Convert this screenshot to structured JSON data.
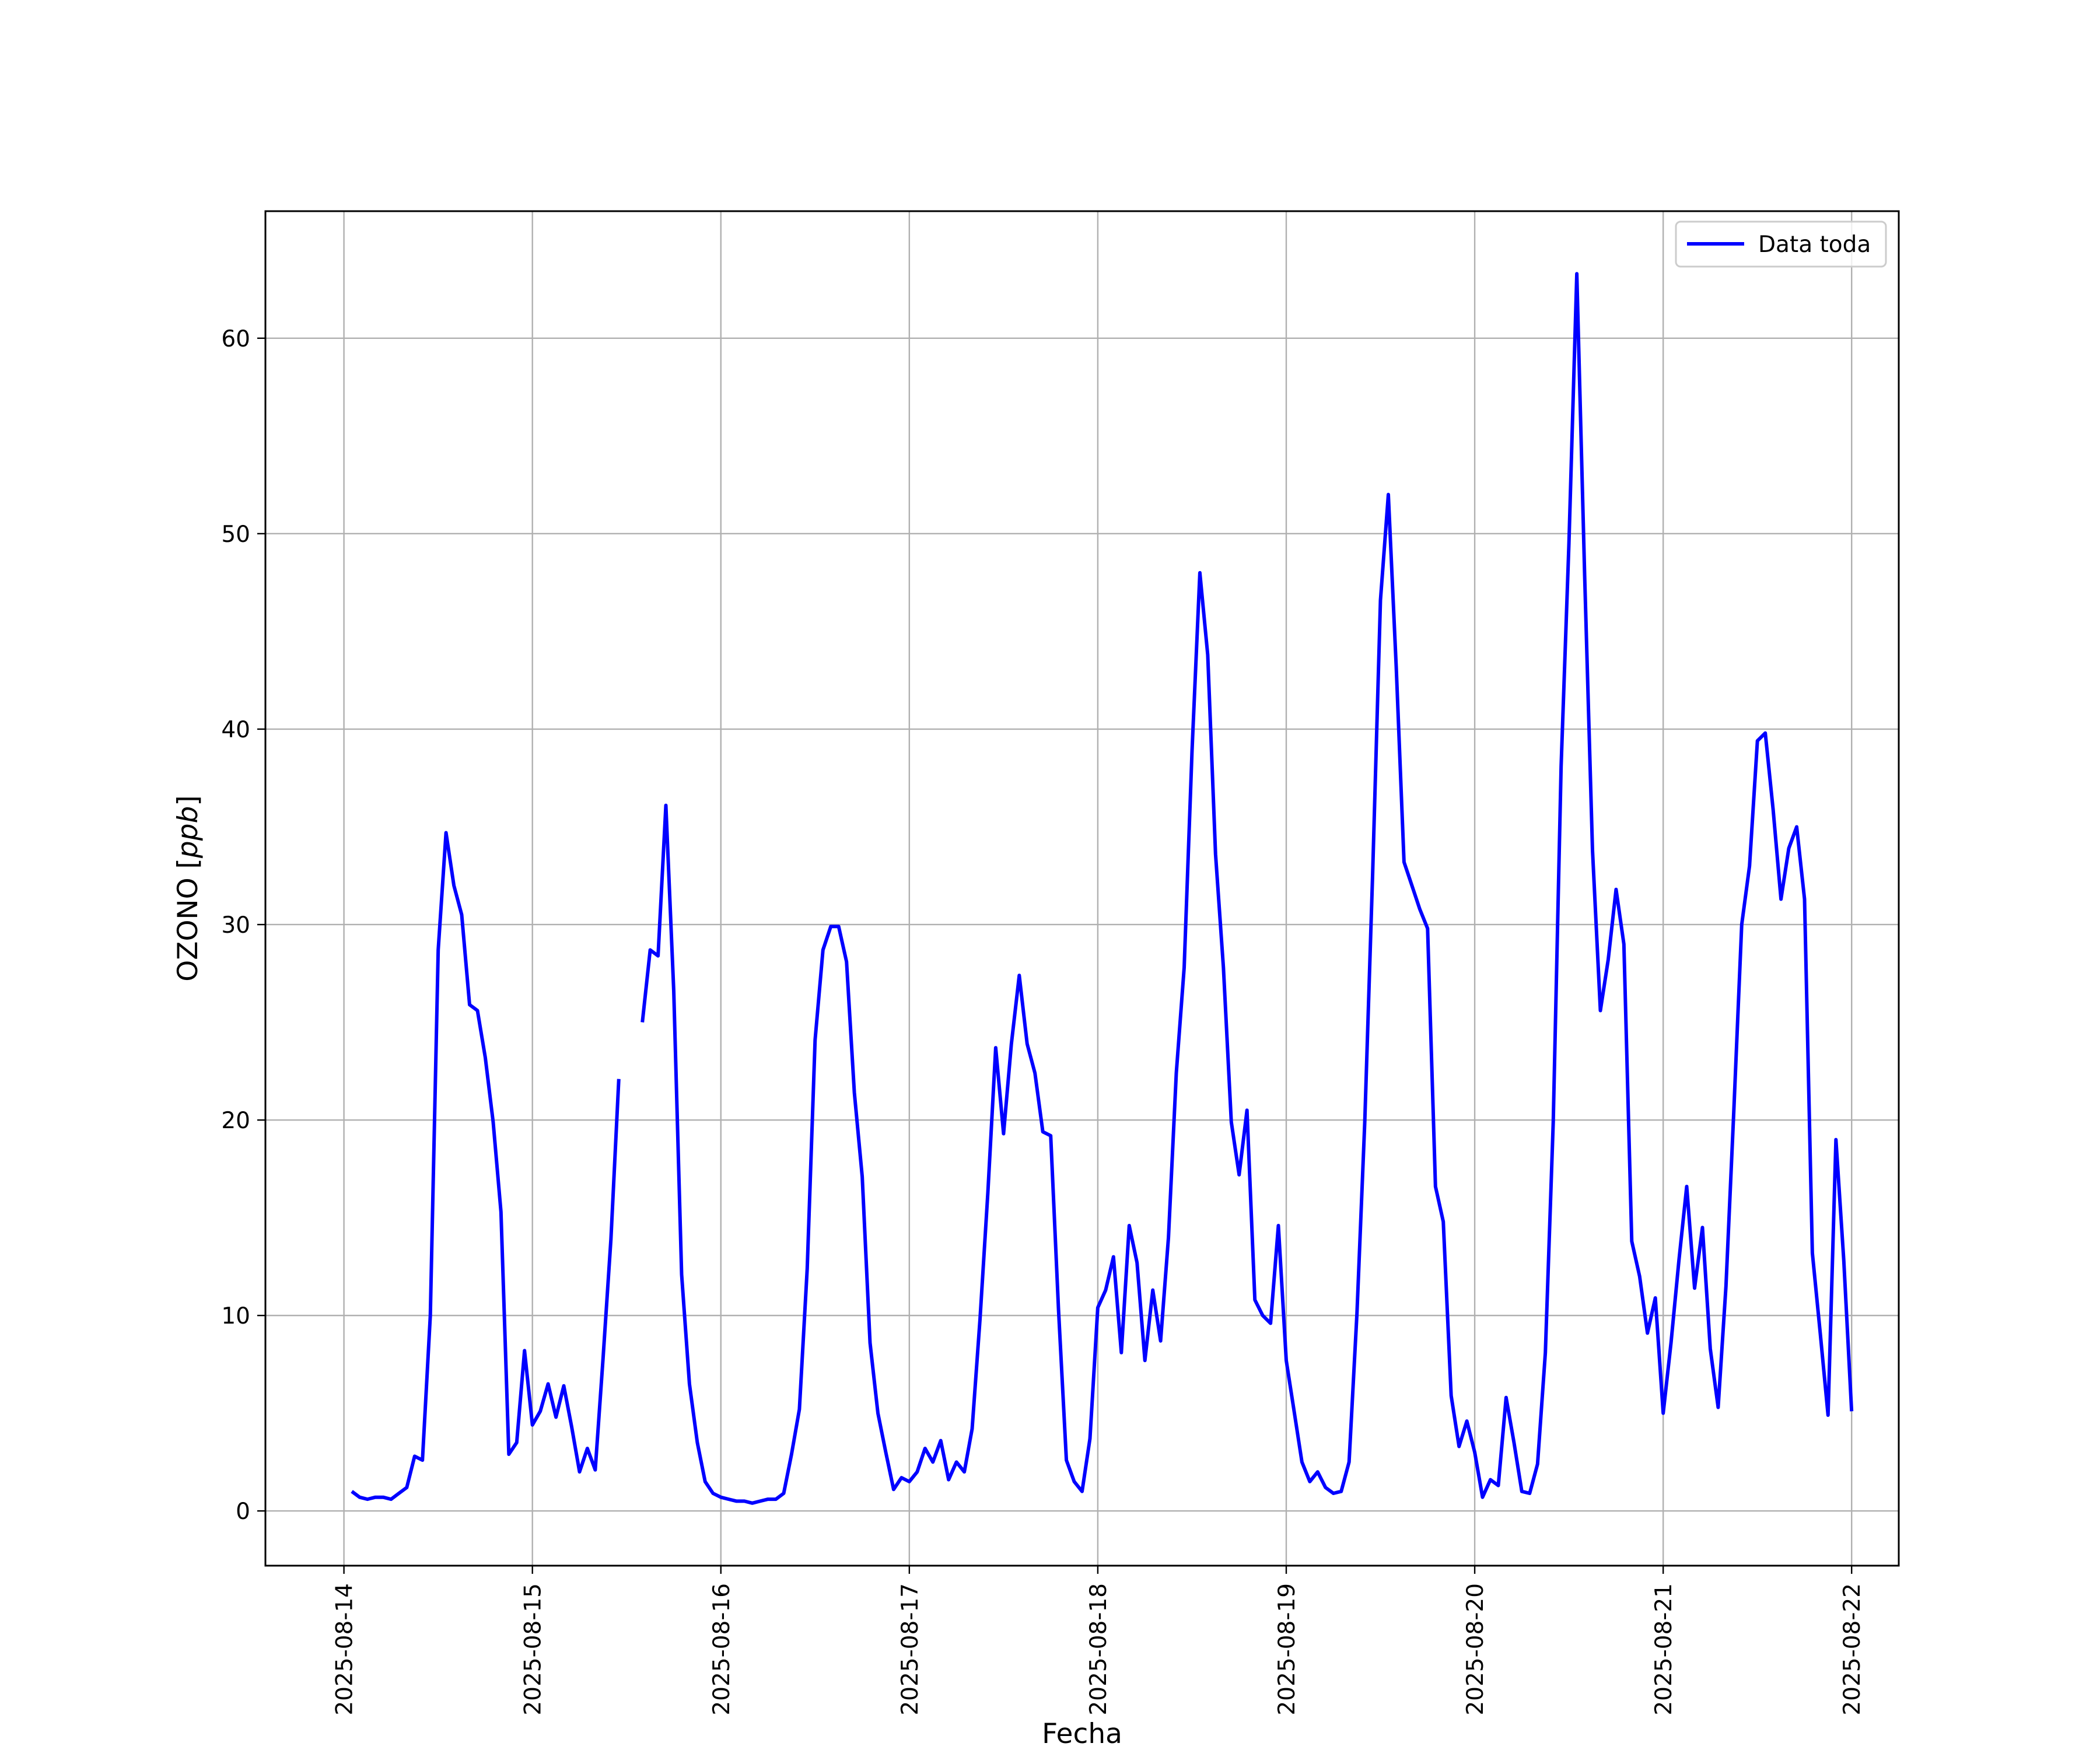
{
  "chart_data": {
    "type": "line",
    "title": "",
    "xlabel": "Fecha",
    "ylabel": "OZONO [ppb]",
    "ylabel_text": "OZONO [",
    "ylabel_unit": "ppb",
    "ylabel_close": "]",
    "xlim": [
      "2025-08-13T14:00",
      "2025-08-22T06:00"
    ],
    "ylim": [
      -2.8,
      66.5
    ],
    "grid": true,
    "legend_position": "top-right",
    "x_ticks": [
      "2025-08-14",
      "2025-08-15",
      "2025-08-16",
      "2025-08-17",
      "2025-08-18",
      "2025-08-19",
      "2025-08-20",
      "2025-08-21",
      "2025-08-22"
    ],
    "y_ticks": [
      0,
      10,
      20,
      30,
      40,
      50,
      60
    ],
    "y_tick_labels": [
      "0",
      "10",
      "20",
      "30",
      "40",
      "50",
      "60"
    ],
    "series": [
      {
        "name": "Data toda",
        "color": "#0000ff",
        "data": [
          [
            "2025-08-14T01:00",
            1.0
          ],
          [
            "2025-08-14T02:00",
            0.7
          ],
          [
            "2025-08-14T03:00",
            0.6
          ],
          [
            "2025-08-14T04:00",
            0.7
          ],
          [
            "2025-08-14T05:00",
            0.7
          ],
          [
            "2025-08-14T06:00",
            0.6
          ],
          [
            "2025-08-14T07:00",
            0.9
          ],
          [
            "2025-08-14T08:00",
            1.2
          ],
          [
            "2025-08-14T09:00",
            2.8
          ],
          [
            "2025-08-14T10:00",
            2.6
          ],
          [
            "2025-08-14T11:00",
            10.0
          ],
          [
            "2025-08-14T12:00",
            28.7
          ],
          [
            "2025-08-14T13:00",
            34.7
          ],
          [
            "2025-08-14T14:00",
            32.0
          ],
          [
            "2025-08-14T15:00",
            30.5
          ],
          [
            "2025-08-14T16:00",
            25.9
          ],
          [
            "2025-08-14T17:00",
            25.6
          ],
          [
            "2025-08-14T18:00",
            23.2
          ],
          [
            "2025-08-14T19:00",
            19.9
          ],
          [
            "2025-08-14T20:00",
            15.3
          ],
          [
            "2025-08-14T21:00",
            2.9
          ],
          [
            "2025-08-14T22:00",
            3.5
          ],
          [
            "2025-08-14T23:00",
            8.2
          ],
          [
            "2025-08-15T00:00",
            4.4
          ],
          [
            "2025-08-15T01:00",
            5.1
          ],
          [
            "2025-08-15T02:00",
            6.5
          ],
          [
            "2025-08-15T03:00",
            4.8
          ],
          [
            "2025-08-15T04:00",
            6.4
          ],
          [
            "2025-08-15T05:00",
            4.3
          ],
          [
            "2025-08-15T06:00",
            2.0
          ],
          [
            "2025-08-15T07:00",
            3.2
          ],
          [
            "2025-08-15T08:00",
            2.1
          ],
          [
            "2025-08-15T09:00",
            7.8
          ],
          [
            "2025-08-15T10:00",
            13.9
          ],
          [
            "2025-08-15T11:00",
            22.1
          ],
          [
            "2025-08-15T12:00",
            null
          ],
          [
            "2025-08-15T13:00",
            null
          ],
          [
            "2025-08-15T14:00",
            25.0
          ],
          [
            "2025-08-15T15:00",
            28.7
          ],
          [
            "2025-08-15T16:00",
            28.4
          ],
          [
            "2025-08-15T17:00",
            36.1
          ],
          [
            "2025-08-15T18:00",
            26.6
          ],
          [
            "2025-08-15T19:00",
            12.1
          ],
          [
            "2025-08-15T20:00",
            6.5
          ],
          [
            "2025-08-15T21:00",
            3.5
          ],
          [
            "2025-08-15T22:00",
            1.5
          ],
          [
            "2025-08-15T23:00",
            0.9
          ],
          [
            "2025-08-16T00:00",
            0.7
          ],
          [
            "2025-08-16T01:00",
            0.6
          ],
          [
            "2025-08-16T02:00",
            0.5
          ],
          [
            "2025-08-16T03:00",
            0.5
          ],
          [
            "2025-08-16T04:00",
            0.4
          ],
          [
            "2025-08-16T05:00",
            0.5
          ],
          [
            "2025-08-16T06:00",
            0.6
          ],
          [
            "2025-08-16T07:00",
            0.6
          ],
          [
            "2025-08-16T08:00",
            0.9
          ],
          [
            "2025-08-16T09:00",
            2.9
          ],
          [
            "2025-08-16T10:00",
            5.2
          ],
          [
            "2025-08-16T11:00",
            12.4
          ],
          [
            "2025-08-16T12:00",
            24.1
          ],
          [
            "2025-08-16T13:00",
            28.7
          ],
          [
            "2025-08-16T14:00",
            29.9
          ],
          [
            "2025-08-16T15:00",
            29.9
          ],
          [
            "2025-08-16T16:00",
            28.1
          ],
          [
            "2025-08-16T17:00",
            21.4
          ],
          [
            "2025-08-16T18:00",
            17.1
          ],
          [
            "2025-08-16T19:00",
            8.6
          ],
          [
            "2025-08-16T20:00",
            5.0
          ],
          [
            "2025-08-16T21:00",
            3.0
          ],
          [
            "2025-08-16T22:00",
            1.1
          ],
          [
            "2025-08-16T23:00",
            1.7
          ],
          [
            "2025-08-17T00:00",
            1.5
          ],
          [
            "2025-08-17T01:00",
            2.0
          ],
          [
            "2025-08-17T02:00",
            3.2
          ],
          [
            "2025-08-17T03:00",
            2.5
          ],
          [
            "2025-08-17T04:00",
            3.6
          ],
          [
            "2025-08-17T05:00",
            1.6
          ],
          [
            "2025-08-17T06:00",
            2.5
          ],
          [
            "2025-08-17T07:00",
            2.0
          ],
          [
            "2025-08-17T08:00",
            4.2
          ],
          [
            "2025-08-17T09:00",
            9.8
          ],
          [
            "2025-08-17T10:00",
            16.3
          ],
          [
            "2025-08-17T11:00",
            23.7
          ],
          [
            "2025-08-17T12:00",
            19.3
          ],
          [
            "2025-08-17T13:00",
            23.9
          ],
          [
            "2025-08-17T14:00",
            27.4
          ],
          [
            "2025-08-17T15:00",
            23.9
          ],
          [
            "2025-08-17T16:00",
            22.4
          ],
          [
            "2025-08-17T17:00",
            19.4
          ],
          [
            "2025-08-17T18:00",
            19.2
          ],
          [
            "2025-08-17T19:00",
            10.3
          ],
          [
            "2025-08-17T20:00",
            2.6
          ],
          [
            "2025-08-17T21:00",
            1.5
          ],
          [
            "2025-08-17T22:00",
            1.0
          ],
          [
            "2025-08-17T23:00",
            3.7
          ],
          [
            "2025-08-18T00:00",
            10.4
          ],
          [
            "2025-08-18T01:00",
            11.3
          ],
          [
            "2025-08-18T02:00",
            13.0
          ],
          [
            "2025-08-18T03:00",
            8.1
          ],
          [
            "2025-08-18T04:00",
            14.6
          ],
          [
            "2025-08-18T05:00",
            12.7
          ],
          [
            "2025-08-18T06:00",
            7.7
          ],
          [
            "2025-08-18T07:00",
            11.3
          ],
          [
            "2025-08-18T08:00",
            8.7
          ],
          [
            "2025-08-18T09:00",
            14.0
          ],
          [
            "2025-08-18T10:00",
            22.4
          ],
          [
            "2025-08-18T11:00",
            27.8
          ],
          [
            "2025-08-18T12:00",
            38.9
          ],
          [
            "2025-08-18T13:00",
            48.0
          ],
          [
            "2025-08-18T14:00",
            43.8
          ],
          [
            "2025-08-18T15:00",
            33.6
          ],
          [
            "2025-08-18T16:00",
            27.8
          ],
          [
            "2025-08-18T17:00",
            19.9
          ],
          [
            "2025-08-18T18:00",
            17.2
          ],
          [
            "2025-08-18T19:00",
            20.5
          ],
          [
            "2025-08-18T20:00",
            10.8
          ],
          [
            "2025-08-18T21:00",
            10.0
          ],
          [
            "2025-08-18T22:00",
            9.6
          ],
          [
            "2025-08-18T23:00",
            14.6
          ],
          [
            "2025-08-19T00:00",
            7.7
          ],
          [
            "2025-08-19T01:00",
            5.1
          ],
          [
            "2025-08-19T02:00",
            2.5
          ],
          [
            "2025-08-19T03:00",
            1.5
          ],
          [
            "2025-08-19T04:00",
            2.0
          ],
          [
            "2025-08-19T05:00",
            1.2
          ],
          [
            "2025-08-19T06:00",
            0.9
          ],
          [
            "2025-08-19T07:00",
            1.0
          ],
          [
            "2025-08-19T08:00",
            2.5
          ],
          [
            "2025-08-19T09:00",
            10.1
          ],
          [
            "2025-08-19T10:00",
            19.9
          ],
          [
            "2025-08-19T11:00",
            32.6
          ],
          [
            "2025-08-19T12:00",
            46.6
          ],
          [
            "2025-08-19T13:00",
            52.0
          ],
          [
            "2025-08-19T14:00",
            43.2
          ],
          [
            "2025-08-19T15:00",
            33.2
          ],
          [
            "2025-08-19T16:00",
            32.0
          ],
          [
            "2025-08-19T17:00",
            30.8
          ],
          [
            "2025-08-19T18:00",
            29.8
          ],
          [
            "2025-08-19T19:00",
            16.6
          ],
          [
            "2025-08-19T20:00",
            14.8
          ],
          [
            "2025-08-19T21:00",
            5.9
          ],
          [
            "2025-08-19T22:00",
            3.3
          ],
          [
            "2025-08-19T23:00",
            4.6
          ],
          [
            "2025-08-20T00:00",
            3.0
          ],
          [
            "2025-08-20T01:00",
            0.7
          ],
          [
            "2025-08-20T02:00",
            1.6
          ],
          [
            "2025-08-20T03:00",
            1.3
          ],
          [
            "2025-08-20T04:00",
            5.8
          ],
          [
            "2025-08-20T05:00",
            3.5
          ],
          [
            "2025-08-20T06:00",
            1.0
          ],
          [
            "2025-08-20T07:00",
            0.9
          ],
          [
            "2025-08-20T08:00",
            2.4
          ],
          [
            "2025-08-20T09:00",
            8.1
          ],
          [
            "2025-08-20T10:00",
            19.9
          ],
          [
            "2025-08-20T11:00",
            38.1
          ],
          [
            "2025-08-20T12:00",
            49.5
          ],
          [
            "2025-08-20T13:00",
            63.3
          ],
          [
            "2025-08-20T14:00",
            47.9
          ],
          [
            "2025-08-20T15:00",
            33.8
          ],
          [
            "2025-08-20T16:00",
            25.6
          ],
          [
            "2025-08-20T17:00",
            28.2
          ],
          [
            "2025-08-20T18:00",
            31.8
          ],
          [
            "2025-08-20T19:00",
            29.0
          ],
          [
            "2025-08-20T20:00",
            13.8
          ],
          [
            "2025-08-20T21:00",
            12.0
          ],
          [
            "2025-08-20T22:00",
            9.1
          ],
          [
            "2025-08-20T23:00",
            10.9
          ],
          [
            "2025-08-21T00:00",
            5.0
          ],
          [
            "2025-08-21T01:00",
            8.6
          ],
          [
            "2025-08-21T02:00",
            12.8
          ],
          [
            "2025-08-21T03:00",
            16.6
          ],
          [
            "2025-08-21T04:00",
            11.4
          ],
          [
            "2025-08-21T05:00",
            14.5
          ],
          [
            "2025-08-21T06:00",
            8.3
          ],
          [
            "2025-08-21T07:00",
            5.3
          ],
          [
            "2025-08-21T08:00",
            11.5
          ],
          [
            "2025-08-21T09:00",
            20.5
          ],
          [
            "2025-08-21T10:00",
            30.0
          ],
          [
            "2025-08-21T11:00",
            33.0
          ],
          [
            "2025-08-21T12:00",
            39.4
          ],
          [
            "2025-08-21T13:00",
            39.8
          ],
          [
            "2025-08-21T14:00",
            35.9
          ],
          [
            "2025-08-21T15:00",
            31.3
          ],
          [
            "2025-08-21T16:00",
            33.9
          ],
          [
            "2025-08-21T17:00",
            35.0
          ],
          [
            "2025-08-21T18:00",
            31.3
          ],
          [
            "2025-08-21T19:00",
            13.2
          ],
          [
            "2025-08-21T20:00",
            9.1
          ],
          [
            "2025-08-21T21:00",
            4.9
          ],
          [
            "2025-08-21T22:00",
            19.0
          ],
          [
            "2025-08-21T23:00",
            12.8
          ],
          [
            "2025-08-22T00:00",
            5.1
          ]
        ]
      }
    ]
  }
}
